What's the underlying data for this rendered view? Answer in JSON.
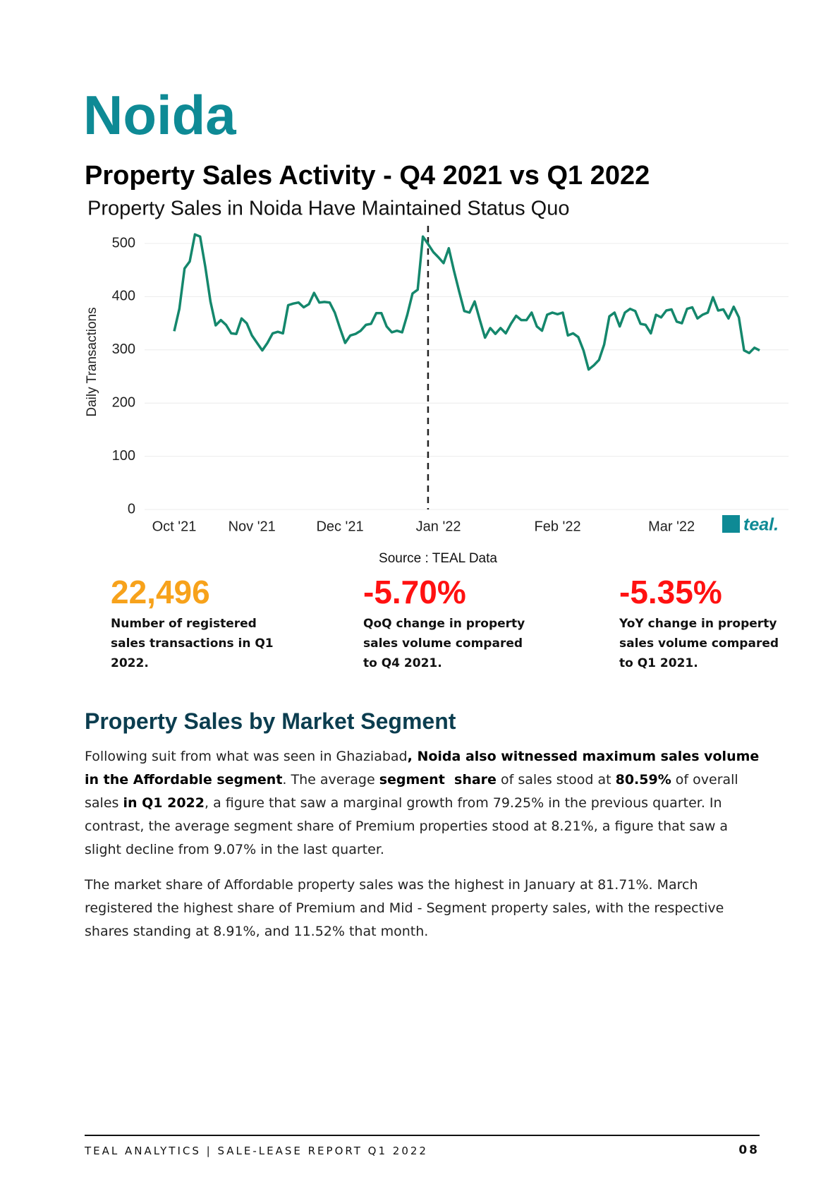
{
  "header": {
    "title": "Noida",
    "heading": "Property Sales Activity - Q4 2021 vs Q1 2022"
  },
  "chart_data": {
    "type": "line",
    "title": "Property Sales in Noida Have Maintained Status Quo",
    "ylabel": "Daily Transactions",
    "categories": [
      "Oct '21",
      null,
      null,
      null,
      null,
      null,
      null,
      null,
      null,
      null,
      null,
      null,
      null,
      null,
      null,
      "Nov '21",
      null,
      null,
      null,
      null,
      null,
      null,
      null,
      null,
      null,
      null,
      null,
      null,
      null,
      null,
      null,
      null,
      "Dec '21",
      null,
      null,
      null,
      null,
      null,
      null,
      null,
      null,
      null,
      null,
      null,
      null,
      null,
      null,
      null,
      null,
      null,
      null,
      "Jan '22",
      null,
      null,
      null,
      null,
      null,
      null,
      null,
      null,
      null,
      null,
      null,
      null,
      null,
      null,
      null,
      null,
      null,
      null,
      null,
      null,
      null,
      null,
      "Feb '22",
      null,
      null,
      null,
      null,
      null,
      null,
      null,
      null,
      null,
      null,
      null,
      null,
      null,
      null,
      null,
      null,
      null,
      null,
      null,
      null,
      null,
      "Mar '22",
      null,
      null,
      null,
      null,
      null,
      null,
      null,
      null,
      null,
      null,
      null,
      null,
      null,
      null,
      null,
      null,
      null
    ],
    "values": [
      335,
      377,
      453,
      466,
      517,
      513,
      456,
      391,
      346,
      356,
      347,
      331,
      330,
      359,
      350,
      327,
      313,
      299,
      313,
      331,
      334,
      331,
      384,
      387,
      389,
      380,
      386,
      407,
      389,
      390,
      389,
      370,
      341,
      313,
      327,
      330,
      336,
      347,
      349,
      369,
      369,
      344,
      333,
      336,
      333,
      366,
      406,
      413,
      513,
      499,
      484,
      474,
      463,
      491,
      449,
      410,
      373,
      370,
      391,
      356,
      323,
      341,
      330,
      341,
      331,
      349,
      364,
      356,
      356,
      370,
      344,
      336,
      366,
      370,
      367,
      370,
      327,
      331,
      324,
      299,
      263,
      271,
      281,
      310,
      363,
      370,
      344,
      370,
      377,
      373,
      349,
      347,
      331,
      366,
      361,
      374,
      376,
      353,
      350,
      377,
      380,
      359,
      366,
      370,
      399,
      374,
      376,
      359,
      381,
      361,
      299,
      294,
      304,
      299
    ],
    "color": "#14876c",
    "ylim": [
      0,
      500
    ],
    "yticks": [
      0,
      100,
      200,
      300,
      400,
      500
    ],
    "grid": true,
    "logo": "teal.",
    "source": "Source : TEAL Data"
  },
  "stats": [
    {
      "value": "22,496",
      "label": "Number of registered sales transactions in Q1 2022.",
      "color": "#f7a21b"
    },
    {
      "value": "-5.70%",
      "label": "QoQ change in property sales volume compared to Q4 2021.",
      "color": "#ff1111"
    },
    {
      "value": "-5.35%",
      "label": "YoY change in property sales volume compared to Q1 2021.",
      "color": "#ff1111"
    }
  ],
  "section": {
    "title": "Property Sales by Market Segment",
    "paragraphs": [
      [
        {
          "text": "Following suit from what was seen in Ghaziabad",
          "bold": false
        },
        {
          "text": ", Noida also witnessed maximum sales volume in the Affordable segment",
          "bold": true
        },
        {
          "text": ". The average ",
          "bold": false
        },
        {
          "text": "segment  share",
          "bold": true
        },
        {
          "text": " of sales stood at ",
          "bold": false
        },
        {
          "text": "80.59%",
          "bold": true
        },
        {
          "text": " of overall sales ",
          "bold": false
        },
        {
          "text": "in Q1 2022",
          "bold": true
        },
        {
          "text": ", a figure that saw a marginal growth from 79.25% in the previous quarter. In contrast, the average segment share of Premium properties stood at 8.21%, a figure that saw a slight decline from 9.07% in the last quarter.",
          "bold": false
        }
      ],
      [
        {
          "text": "The market share of Affordable property sales was the highest in January at 81.71%. March registered the highest share of Premium and Mid - Segment property sales, with the respective shares standing at 8.91%, and 11.52% that month.",
          "bold": false
        }
      ]
    ]
  },
  "footer": {
    "text": "TEAL ANALYTICS | SALE-LEASE REPORT Q1 2022",
    "page": "08"
  }
}
